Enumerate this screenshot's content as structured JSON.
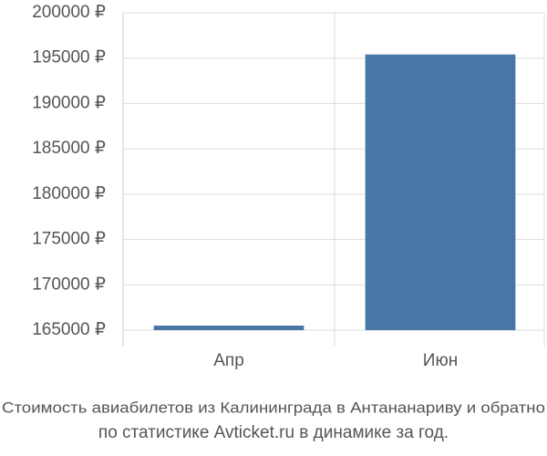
{
  "chart_data": {
    "type": "bar",
    "title": "Стоимость авиабилетов из Калининграда в Антананариву и обратно",
    "subtitle": "по статистике Avticket.ru в динамике за год.",
    "categories": [
      "Апр",
      "Июн"
    ],
    "values": [
      165500,
      195400
    ],
    "color": "#4a76a5",
    "ylim": [
      165000,
      200000
    ],
    "yticks": [
      {
        "value": 165000,
        "label": "165000 ₽"
      },
      {
        "value": 170000,
        "label": "170000 ₽"
      },
      {
        "value": 175000,
        "label": "175000 ₽"
      },
      {
        "value": 180000,
        "label": "180000 ₽"
      },
      {
        "value": 185000,
        "label": "185000 ₽"
      },
      {
        "value": 190000,
        "label": "190000 ₽"
      },
      {
        "value": 195000,
        "label": "195000 ₽"
      },
      {
        "value": 200000,
        "label": "200000 ₽"
      }
    ],
    "grid": true
  }
}
